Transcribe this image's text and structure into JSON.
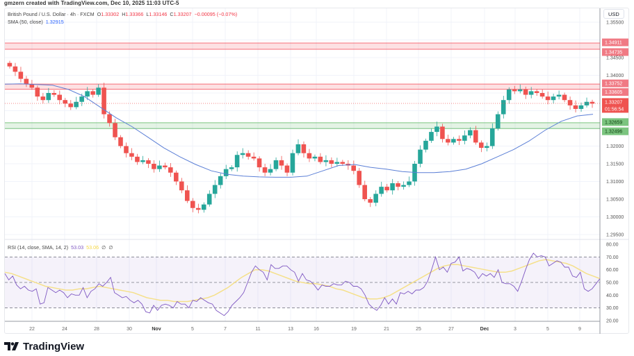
{
  "credit": "gmzern created with TradingView.com, Dec 10, 2025 11:03 UTC-5",
  "header": {
    "symbol": "British Pound / U.S. Dollar · 4h · FXCM",
    "open_label": "O",
    "open": "1.33302",
    "high_label": "H",
    "high": "1.33366",
    "low_label": "L",
    "low": "1.33146",
    "close_label": "C",
    "close": "1.33207",
    "change": "−0.00095 (−0.07%)",
    "sma_label": "SMA (50, close)",
    "sma_value": "1.32915"
  },
  "rsi_legend": {
    "label": "RSI (14, close, SMA, 14, 2)",
    "rsi": "53.03",
    "sma": "53.06",
    "extra1": "∅",
    "extra2": "∅"
  },
  "currency": "USD",
  "logo": {
    "mark": "TV",
    "text": "TradingView"
  },
  "colors": {
    "up": "#26a69a",
    "down": "#ef5350",
    "sma": "#5b7fd6",
    "rsi": "#7e57c2",
    "rsi_sma": "#f5e08a",
    "resistance": "#f23645",
    "support": "#4caf50"
  },
  "chart_data": [
    {
      "type": "candlestick",
      "title": "British Pound / U.S. Dollar · 4h · FXCM",
      "ylabel": "USD",
      "ylim": [
        1.2925,
        1.3575
      ],
      "y_ticks": [
        "1.35500",
        "1.34500",
        "1.34000",
        "1.33500",
        "1.32000",
        "1.31500",
        "1.31000",
        "1.30500",
        "1.30000",
        "1.29500"
      ],
      "x_ticks": [
        "22",
        "24",
        "28",
        "30",
        "Nov",
        "5",
        "7",
        "11",
        "13",
        "16",
        "19",
        "21",
        "25",
        "27",
        "Dec",
        "3",
        "5",
        "9"
      ],
      "last_price": "1.33207",
      "countdown": "01:56:54",
      "zones": [
        {
          "name": "resistance-upper",
          "top": 1.34911,
          "bottom": 1.34735,
          "top_label": "1.34911",
          "bottom_label": "1.34735",
          "color": "#f23645"
        },
        {
          "name": "resistance-lower",
          "top": 1.33752,
          "bottom": 1.33605,
          "top_label": "1.33752",
          "bottom_label": "1.33605",
          "color": "#f23645"
        },
        {
          "name": "support",
          "top": 1.32659,
          "bottom": 1.32496,
          "top_label": "1.32659",
          "bottom_label": "1.32496",
          "color": "#4caf50"
        }
      ],
      "close_path": [
        1.3425,
        1.341,
        1.339,
        1.3375,
        1.3365,
        1.334,
        1.333,
        1.335,
        1.3345,
        1.333,
        1.332,
        1.331,
        1.3325,
        1.334,
        1.3355,
        1.3345,
        1.3365,
        1.329,
        1.3265,
        1.3225,
        1.32,
        1.318,
        1.317,
        1.3155,
        1.316,
        1.315,
        1.3135,
        1.3145,
        1.314,
        1.3125,
        1.31,
        1.3075,
        1.3045,
        1.3025,
        1.302,
        1.3035,
        1.3065,
        1.309,
        1.3115,
        1.3135,
        1.314,
        1.3175,
        1.318,
        1.317,
        1.3165,
        1.314,
        1.3125,
        1.3135,
        1.316,
        1.3145,
        1.3125,
        1.318,
        1.3205,
        1.318,
        1.3165,
        1.317,
        1.3155,
        1.316,
        1.315,
        1.3155,
        1.315,
        1.3145,
        1.313,
        1.309,
        1.305,
        1.304,
        1.3065,
        1.3085,
        1.3075,
        1.3095,
        1.3085,
        1.309,
        1.31,
        1.315,
        1.319,
        1.3215,
        1.324,
        1.3255,
        1.322,
        1.321,
        1.322,
        1.3215,
        1.323,
        1.3245,
        1.321,
        1.3195,
        1.32,
        1.325,
        1.329,
        1.333,
        1.336,
        1.3355,
        1.336,
        1.3345,
        1.3355,
        1.335,
        1.334,
        1.333,
        1.334,
        1.3345,
        1.333,
        1.3315,
        1.3305,
        1.3315,
        1.3325,
        1.332
      ],
      "sma_path": [
        1.3375,
        1.3376,
        1.3374,
        1.3372,
        1.336,
        1.334,
        1.331,
        1.328,
        1.3255,
        1.3225,
        1.3195,
        1.317,
        1.3148,
        1.313,
        1.312,
        1.3115,
        1.3113,
        1.3112,
        1.3112,
        1.3115,
        1.313,
        1.3145,
        1.3148,
        1.314,
        1.3135,
        1.3128,
        1.3125,
        1.3125,
        1.3128,
        1.3135,
        1.315,
        1.317,
        1.319,
        1.3215,
        1.3245,
        1.327,
        1.3285,
        1.329
      ],
      "series": [
        {
          "name": "SMA (50, close)",
          "last": "1.32915"
        }
      ]
    },
    {
      "type": "line",
      "title": "RSI (14, close, SMA, 14, 2)",
      "ylim": [
        20,
        80
      ],
      "y_ticks": [
        "80.00",
        "70.00",
        "60.00",
        "50.00",
        "40.00",
        "30.00",
        "20.00"
      ],
      "bands": [
        70,
        50,
        30
      ],
      "series": [
        {
          "name": "RSI",
          "last": "53.03",
          "values": [
            57,
            52,
            55,
            48,
            45,
            47,
            44,
            43,
            45,
            33,
            34,
            46,
            44,
            42,
            44,
            42,
            38,
            41,
            40,
            40,
            46,
            38,
            43,
            45,
            49,
            47,
            50,
            54,
            42,
            40,
            38,
            39,
            36,
            34,
            36,
            33,
            27,
            26,
            32,
            28,
            32,
            33,
            32,
            30,
            35,
            33,
            33,
            30,
            36,
            35,
            38,
            36,
            34,
            33,
            28,
            26,
            24,
            27,
            32,
            35,
            38,
            42,
            50,
            58,
            63,
            60,
            58,
            52,
            64,
            61,
            61,
            63,
            63,
            60,
            58,
            51,
            57,
            52,
            51,
            48,
            44,
            48,
            47,
            47,
            49,
            48,
            48,
            51,
            50,
            47,
            47,
            45,
            40,
            33,
            30,
            28,
            32,
            38,
            33,
            37,
            33,
            42,
            41,
            43,
            41,
            44,
            44,
            46,
            51,
            60,
            70,
            60,
            62,
            58,
            65,
            66,
            70,
            59,
            61,
            60,
            58,
            53,
            57,
            55,
            57,
            54,
            60,
            50,
            49,
            49,
            47,
            43,
            51,
            60,
            68,
            73,
            70,
            71,
            70,
            63,
            65,
            67,
            66,
            62,
            62,
            55,
            54,
            58,
            45,
            43,
            45,
            49,
            53
          ]
        },
        {
          "name": "RSI SMA",
          "last": "53.06",
          "values": [
            58,
            57,
            55,
            53,
            51,
            49,
            47,
            46,
            45,
            44,
            44,
            45,
            45,
            46,
            47,
            46,
            45,
            44,
            43,
            42,
            40,
            38,
            37,
            36,
            36,
            35,
            35,
            35,
            36,
            37,
            38,
            40,
            43,
            46,
            50,
            54,
            57,
            60,
            60,
            59,
            57,
            55,
            53,
            51,
            50,
            49,
            49,
            48,
            47,
            45,
            44,
            42,
            40,
            38,
            37,
            37,
            38,
            40,
            43,
            46,
            49,
            52,
            55,
            58,
            61,
            63,
            64,
            64,
            63,
            62,
            61,
            60,
            59,
            58,
            58,
            59,
            61,
            63,
            65,
            67,
            68,
            67,
            66,
            65,
            63,
            60,
            57,
            55,
            53
          ]
        }
      ]
    }
  ]
}
